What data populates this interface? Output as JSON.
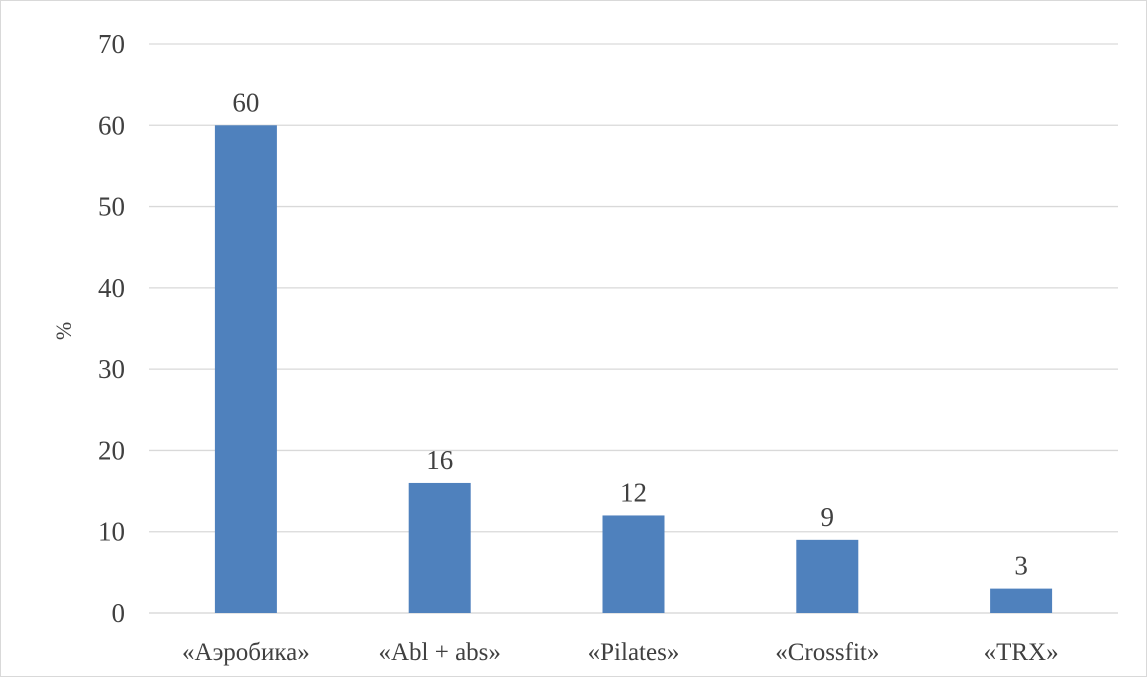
{
  "chart_data": {
    "type": "bar",
    "title": "",
    "xlabel": "",
    "ylabel": "%",
    "categories": [
      "«Аэробика»",
      "«Abl + abs»",
      "«Pilates»",
      "«Crossfit»",
      "«TRX»"
    ],
    "values": [
      60,
      16,
      12,
      9,
      3
    ],
    "data_labels": [
      "60",
      "16",
      "12",
      "9",
      "3"
    ],
    "ylim": [
      0,
      70
    ],
    "yticks": [
      0,
      10,
      20,
      30,
      40,
      50,
      60,
      70
    ],
    "grid": true,
    "legend": "none",
    "colors": {
      "bar": "#4f81bd",
      "grid": "#d9d9d9",
      "text": "#404040"
    }
  }
}
